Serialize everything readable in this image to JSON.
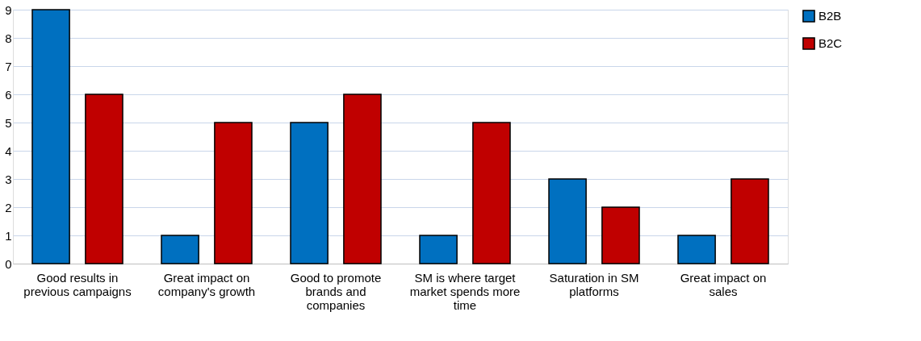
{
  "chart_data": {
    "type": "bar",
    "categories": [
      "Good results in previous campaigns",
      "Great impact on company's growth",
      "Good to promote brands and companies",
      "SM is where target market spends more time",
      "Saturation in SM platforms",
      "Great impact on sales"
    ],
    "series": [
      {
        "name": "B2B",
        "color": "#0070c0",
        "values": [
          9,
          1,
          5,
          1,
          3,
          1
        ]
      },
      {
        "name": "B2C",
        "color": "#c00000",
        "values": [
          6,
          5,
          6,
          5,
          2,
          3
        ]
      }
    ],
    "ylim": [
      0,
      9
    ],
    "yticks": [
      0,
      1,
      2,
      3,
      4,
      5,
      6,
      7,
      8,
      9
    ],
    "grid": "y",
    "legend": "right"
  }
}
